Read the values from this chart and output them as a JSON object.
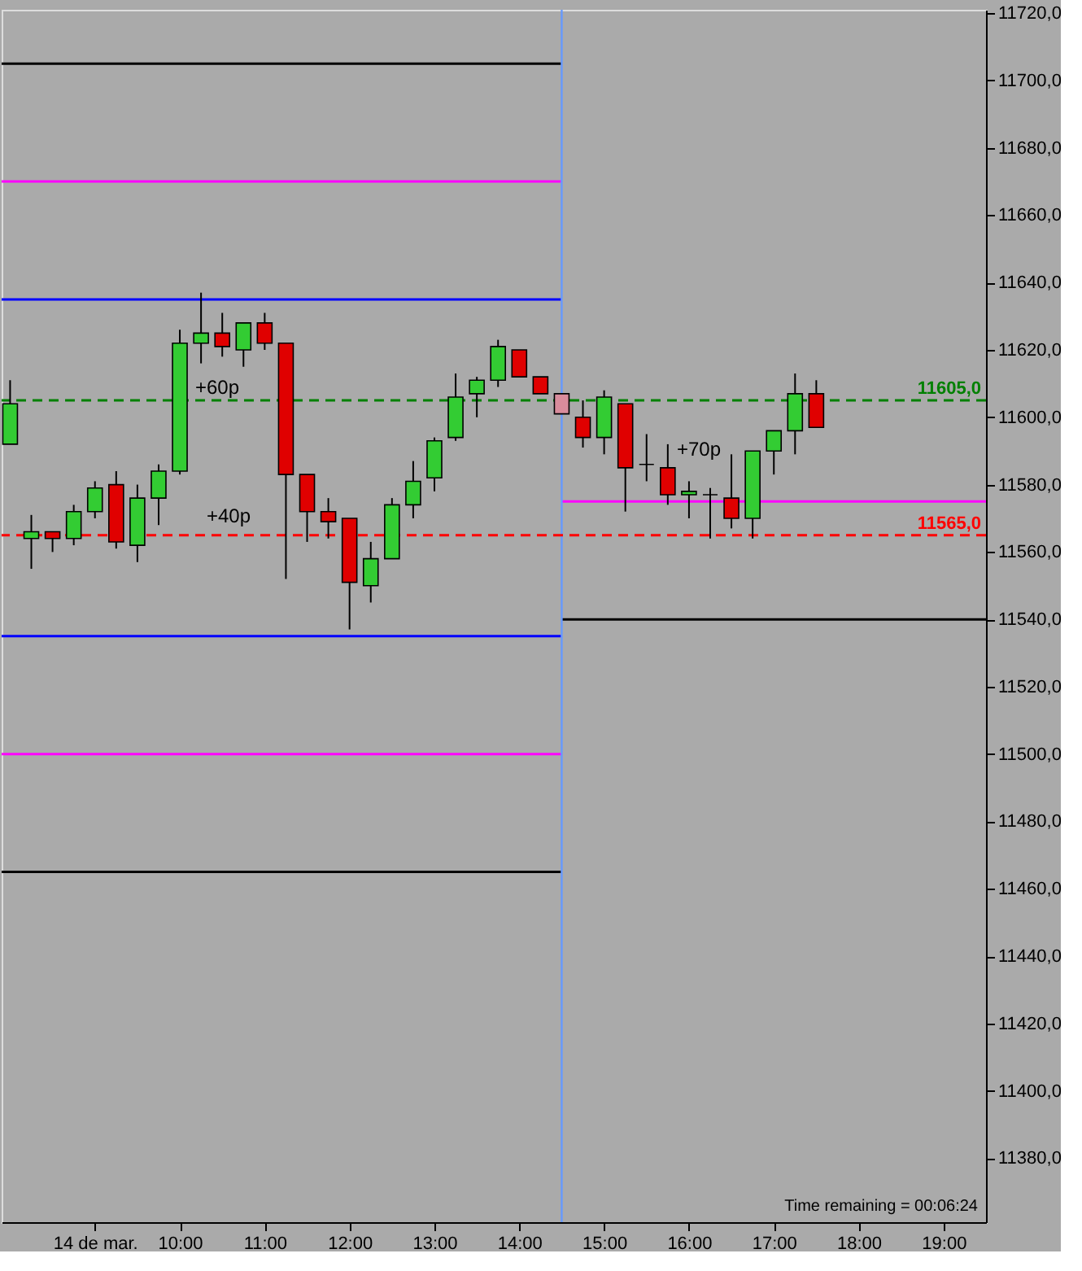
{
  "chart_data": {
    "type": "candlestick",
    "x": [
      8,
      8.25,
      8.5,
      8.75,
      9,
      9.25,
      9.5,
      9.75,
      10,
      10.25,
      10.5,
      10.75,
      11,
      11.25,
      11.5,
      11.75,
      12,
      12.25,
      12.5,
      12.75,
      13,
      13.25,
      13.5,
      13.75,
      14,
      14.25,
      14.5,
      14.75,
      15,
      15.25,
      15.5,
      15.75,
      16,
      16.25,
      16.5,
      16.75,
      17,
      17.25,
      17.5
    ],
    "ohlc": [
      [
        11592,
        11611,
        11592,
        11604
      ],
      [
        11564,
        11571,
        11555,
        11566
      ],
      [
        11566,
        11566,
        11560,
        11564
      ],
      [
        11564,
        11574,
        11562,
        11572
      ],
      [
        11572,
        11581,
        11570,
        11579
      ],
      [
        11580,
        11584,
        11561,
        11563
      ],
      [
        11562,
        11580,
        11557,
        11576
      ],
      [
        11576,
        11586,
        11568,
        11584
      ],
      [
        11584,
        11626,
        11583,
        11622
      ],
      [
        11622,
        11637,
        11616,
        11625
      ],
      [
        11625,
        11631,
        11618,
        11621
      ],
      [
        11620,
        11628,
        11615,
        11628
      ],
      [
        11628,
        11631,
        11620,
        11622
      ],
      [
        11622,
        11622,
        11552,
        11583
      ],
      [
        11583,
        11583,
        11563,
        11572
      ],
      [
        11572,
        11576,
        11564,
        11569
      ],
      [
        11570,
        11570,
        11537,
        11551
      ],
      [
        11550,
        11563,
        11545,
        11558
      ],
      [
        11558,
        11576,
        11558,
        11574
      ],
      [
        11574,
        11587,
        11570,
        11581
      ],
      [
        11582,
        11594,
        11578,
        11593
      ],
      [
        11594,
        11613,
        11593,
        11606
      ],
      [
        11607,
        11612,
        11600,
        11611
      ],
      [
        11611,
        11623,
        11609,
        11621
      ],
      [
        11620,
        11620,
        11612,
        11612
      ],
      [
        11612,
        11612,
        11607,
        11607
      ],
      [
        11607,
        11607,
        11601,
        11601
      ],
      [
        11600,
        11605,
        11591,
        11594
      ],
      [
        11594,
        11608,
        11589,
        11606
      ],
      [
        11604,
        11604,
        11572,
        11585
      ],
      [
        11586,
        11595,
        11581,
        11586
      ],
      [
        11585,
        11592,
        11574,
        11577
      ],
      [
        11577,
        11581,
        11570,
        11578
      ],
      [
        11577,
        11579,
        11564,
        11577
      ],
      [
        11576,
        11589,
        11567,
        11570
      ],
      [
        11570,
        11590,
        11564,
        11590
      ],
      [
        11590,
        11596,
        11583,
        11596
      ],
      [
        11596,
        11613,
        11589,
        11607
      ],
      [
        11607,
        11611,
        11597,
        11597
      ]
    ],
    "colors": [
      "#33cc33",
      "#33cc33",
      "#e00000",
      "#33cc33",
      "#33cc33",
      "#e00000",
      "#33cc33",
      "#33cc33",
      "#33cc33",
      "#33cc33",
      "#e00000",
      "#33cc33",
      "#e00000",
      "#e00000",
      "#e00000",
      "#e00000",
      "#e00000",
      "#33cc33",
      "#33cc33",
      "#33cc33",
      "#33cc33",
      "#33cc33",
      "#33cc33",
      "#33cc33",
      "#e00000",
      "#e00000",
      "#d98c9c",
      "#e00000",
      "#33cc33",
      "#e00000",
      "#000000",
      "#e00000",
      "#33cc33",
      "#000000",
      "#e00000",
      "#33cc33",
      "#33cc33",
      "#33cc33",
      "#e00000"
    ],
    "series": [
      {
        "type": "line",
        "color": "#000000",
        "x": [
          7.9,
          14.5
        ],
        "values": [
          11705,
          11705
        ]
      },
      {
        "type": "line",
        "color": "#ff00ff",
        "x": [
          7.9,
          14.5
        ],
        "values": [
          11670,
          11670
        ]
      },
      {
        "type": "line",
        "color": "#0000ff",
        "x": [
          7.9,
          14.5
        ],
        "values": [
          11635,
          11635
        ]
      },
      {
        "type": "line",
        "color": "#0000ff",
        "x": [
          7.9,
          14.5
        ],
        "values": [
          11535,
          11535
        ]
      },
      {
        "type": "line",
        "color": "#ff00ff",
        "x": [
          7.9,
          14.5
        ],
        "values": [
          11500,
          11500
        ]
      },
      {
        "type": "line",
        "color": "#000000",
        "x": [
          7.9,
          14.5
        ],
        "values": [
          11465,
          11465
        ]
      },
      {
        "type": "line",
        "color": "#ff00ff",
        "x": [
          14.5,
          19.5
        ],
        "values": [
          11575,
          11575
        ]
      },
      {
        "type": "line",
        "color": "#000000",
        "x": [
          14.5,
          19.5
        ],
        "values": [
          11540,
          11540
        ]
      }
    ],
    "ref_lines": [
      {
        "axis": "x",
        "value": 14.5,
        "color": "#6699ff"
      },
      {
        "axis": "y",
        "value": 11605,
        "label": "11605,0",
        "color": "#008000",
        "line_style": "dashed"
      },
      {
        "axis": "y",
        "value": 11565,
        "label": "11565,0",
        "color": "#ff0000",
        "line_style": "dashed"
      }
    ],
    "annotations": [
      "+60p",
      "+40p",
      "+70p",
      "Time remaining = 00:06:24"
    ],
    "xlim": [
      7.9,
      19.5
    ],
    "xticks": [
      {
        "value": 9,
        "label": "14 de mar."
      },
      {
        "value": 10,
        "label": "10:00"
      },
      {
        "value": 11,
        "label": "11:00"
      },
      {
        "value": 12,
        "label": "12:00"
      },
      {
        "value": 13,
        "label": "13:00"
      },
      {
        "value": 14,
        "label": "14:00"
      },
      {
        "value": 15,
        "label": "15:00"
      },
      {
        "value": 16,
        "label": "16:00"
      },
      {
        "value": 17,
        "label": "17:00"
      },
      {
        "value": 18,
        "label": "18:00"
      },
      {
        "value": 19,
        "label": "19:00"
      }
    ],
    "ylim": [
      11361,
      11721
    ],
    "yticks": [
      {
        "value": 11380,
        "label": "11380,0"
      },
      {
        "value": 11400,
        "label": "11400,0"
      },
      {
        "value": 11420,
        "label": "11420,0"
      },
      {
        "value": 11440,
        "label": "11440,0"
      },
      {
        "value": 11460,
        "label": "11460,0"
      },
      {
        "value": 11480,
        "label": "11480,0"
      },
      {
        "value": 11500,
        "label": "11500,0"
      },
      {
        "value": 11520,
        "label": "11520,0"
      },
      {
        "value": 11540,
        "label": "11540,0"
      },
      {
        "value": 11560,
        "label": "11560,0"
      },
      {
        "value": 11580,
        "label": "11580,0"
      },
      {
        "value": 11600,
        "label": "11600,0"
      },
      {
        "value": 11620,
        "label": "11620,0"
      },
      {
        "value": 11640,
        "label": "11640,0"
      },
      {
        "value": 11660,
        "label": "11660,0"
      },
      {
        "value": 11680,
        "label": "11680,0"
      },
      {
        "value": 11700,
        "label": "11700,0"
      },
      {
        "value": 11720,
        "label": "11720,0"
      }
    ],
    "grid": false
  }
}
